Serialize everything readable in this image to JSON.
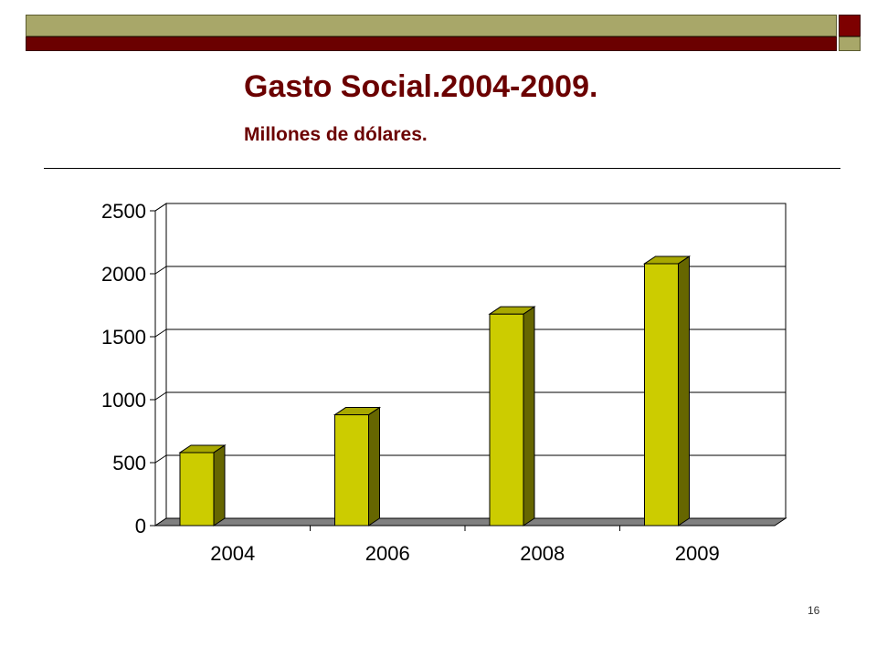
{
  "slide": {
    "title": "Gasto Social.2004-2009.",
    "subtitle": "Millones de dólares.",
    "page_number": "16"
  },
  "colors": {
    "band_olive": "#a8a769",
    "band_maroon": "#6b0000",
    "bar_front": "#cccc00",
    "bar_side": "#666600",
    "bar_top": "#a8a800",
    "floor": "#808080"
  },
  "chart_data": {
    "type": "bar",
    "categories": [
      "2004",
      "2006",
      "2008",
      "2009"
    ],
    "values": [
      580,
      880,
      1680,
      2080
    ],
    "y_ticks": [
      "0",
      "500",
      "1000",
      "1500",
      "2000",
      "2500"
    ],
    "ylim": [
      0,
      2500
    ],
    "grid": true,
    "legend": "none",
    "style": "3d-column"
  }
}
